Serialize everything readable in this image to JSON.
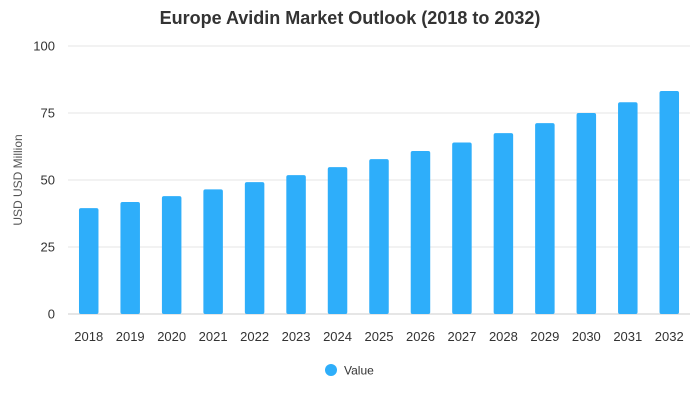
{
  "chart_data": {
    "type": "bar",
    "title": "Europe Avidin Market Outlook (2018 to 2032)",
    "xlabel": "",
    "ylabel": "USD USD Million",
    "categories": [
      "2018",
      "2019",
      "2020",
      "2021",
      "2022",
      "2023",
      "2024",
      "2025",
      "2026",
      "2027",
      "2028",
      "2029",
      "2030",
      "2031",
      "2032"
    ],
    "series": [
      {
        "name": "Value",
        "values": [
          39.5,
          41.8,
          44.0,
          46.5,
          49.2,
          51.8,
          54.8,
          57.8,
          60.8,
          64.0,
          67.5,
          71.2,
          75.0,
          79.0,
          83.2
        ],
        "color": "#2eaefa"
      }
    ],
    "ylim": [
      0,
      100
    ],
    "yticks": [
      0,
      25,
      50,
      75,
      100
    ],
    "grid": true,
    "legend_position": "bottom-center"
  }
}
